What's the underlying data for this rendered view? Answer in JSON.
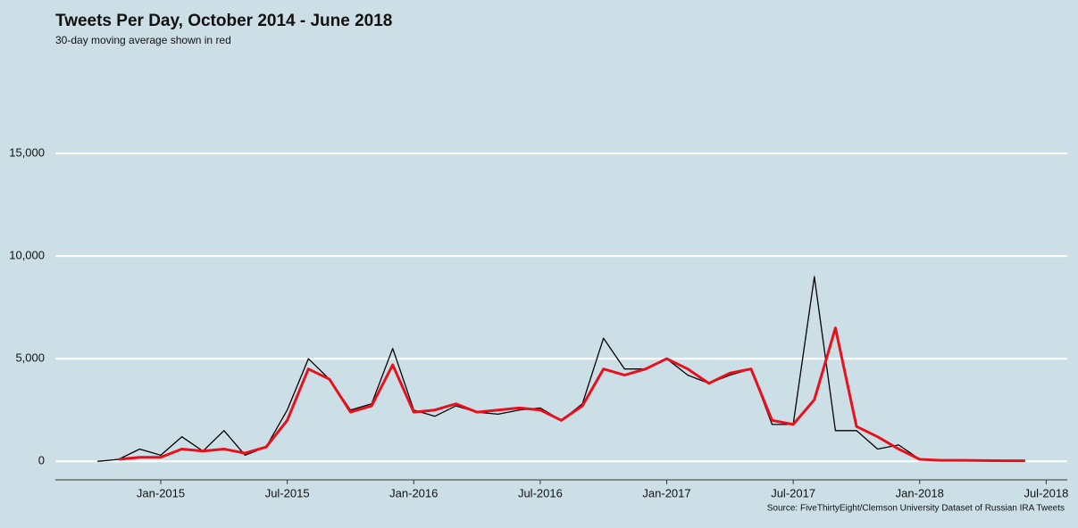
{
  "chart_data": {
    "type": "line",
    "title": "Tweets Per Day, October 2014 - June 2018",
    "subtitle": "30-day moving average shown in red",
    "source": "Source: FiveThirtyEight/Clemson University Dataset of Russian IRA Tweets",
    "x": [
      "2014-10",
      "2014-11",
      "2014-12",
      "2015-01",
      "2015-02",
      "2015-03",
      "2015-04",
      "2015-05",
      "2015-06",
      "2015-07",
      "2015-08",
      "2015-09",
      "2015-10",
      "2015-11",
      "2015-12",
      "2016-01",
      "2016-02",
      "2016-03",
      "2016-04",
      "2016-05",
      "2016-06",
      "2016-07",
      "2016-08",
      "2016-09",
      "2016-10",
      "2016-11",
      "2016-12",
      "2017-01",
      "2017-02",
      "2017-03",
      "2017-04",
      "2017-05",
      "2017-06",
      "2017-07",
      "2017-08",
      "2017-09",
      "2017-10",
      "2017-11",
      "2017-12",
      "2018-01",
      "2018-02",
      "2018-03",
      "2018-04",
      "2018-05",
      "2018-06"
    ],
    "series": [
      {
        "color": "#000000",
        "width": 1.3,
        "values": [
          0,
          100,
          600,
          300,
          1200,
          500,
          1500,
          300,
          700,
          2500,
          5000,
          4000,
          2500,
          2800,
          5500,
          2500,
          2200,
          2700,
          2400,
          2300,
          2500,
          2600,
          2000,
          2800,
          6000,
          4500,
          4500,
          5000,
          4200,
          3800,
          4200,
          4500,
          1800,
          1800,
          9000,
          1500,
          1500,
          600,
          800,
          100,
          50,
          30,
          20,
          10,
          10
        ]
      },
      {
        "color": "#e8101c",
        "width": 3,
        "values": [
          null,
          100,
          200,
          200,
          600,
          500,
          600,
          400,
          700,
          2000,
          4500,
          4000,
          2400,
          2700,
          4700,
          2400,
          2500,
          2800,
          2400,
          2500,
          2600,
          2500,
          2000,
          2700,
          4500,
          4200,
          4500,
          5000,
          4500,
          3800,
          4300,
          4500,
          2000,
          1800,
          3000,
          6500,
          1700,
          1200,
          600,
          100,
          50,
          50,
          40,
          30,
          30
        ]
      }
    ],
    "xlim": [
      "2014-08",
      "2018-08"
    ],
    "xticks": [
      {
        "value": "2015-01",
        "label": "Jan-2015"
      },
      {
        "value": "2015-07",
        "label": "Jul-2015"
      },
      {
        "value": "2016-01",
        "label": "Jan-2016"
      },
      {
        "value": "2016-07",
        "label": "Jul-2016"
      },
      {
        "value": "2017-01",
        "label": "Jan-2017"
      },
      {
        "value": "2017-07",
        "label": "Jul-2017"
      },
      {
        "value": "2018-01",
        "label": "Jan-2018"
      },
      {
        "value": "2018-07",
        "label": "Jul-2018"
      }
    ],
    "ylim": [
      -900,
      19000
    ],
    "yticks": [
      0,
      {
        "value": 5000,
        "label": "5,000"
      },
      {
        "value": 10000,
        "label": "10,000"
      },
      {
        "value": 15000,
        "label": "15,000"
      }
    ],
    "grid": true
  }
}
